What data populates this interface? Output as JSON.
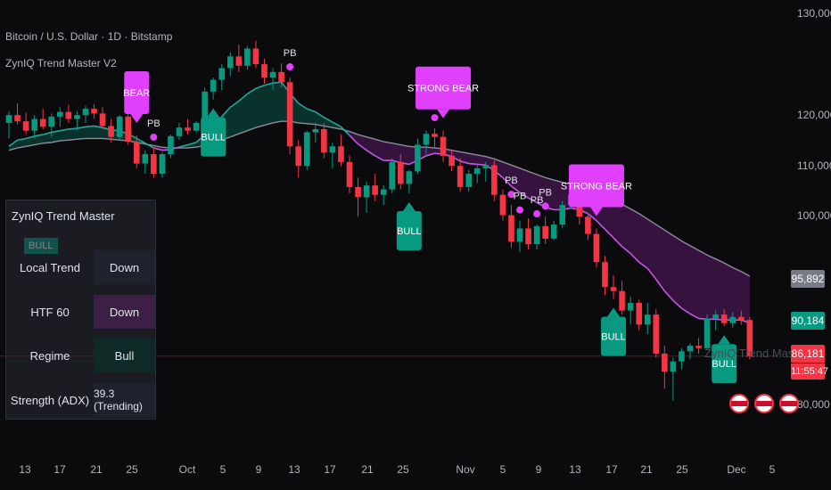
{
  "legend": {
    "symbol": "Bitcoin / U.S. Dollar · 1D · Bitstamp",
    "indicator": "ZynIQ Trend Master V2",
    "watermark": "ZynIQ Trend Master"
  },
  "panel": {
    "title": "ZynIQ Trend Master",
    "rows": [
      {
        "label": "Local Trend",
        "value": "Down",
        "bg": "#1e222d"
      },
      {
        "label": "HTF 60",
        "value": "Down",
        "bg": "#3b1f45"
      },
      {
        "label": "Regime",
        "value": "Bull",
        "bg": "#0f2a26"
      },
      {
        "label": "Strength (ADX)",
        "value": "39.3 (Trending)",
        "bg": "#1e222d"
      }
    ],
    "faded_label": "BULL"
  },
  "price_axis": {
    "ticks": [
      "130,000",
      "120,000",
      "110,000",
      "100,000",
      "80,000"
    ],
    "badges": [
      {
        "text": "95,892",
        "color": "#787b86"
      },
      {
        "text": "90,184",
        "color": "#089981"
      },
      {
        "text": "86,181",
        "color": "#f23645"
      },
      {
        "text": "11:55:47",
        "color": "#f23645"
      }
    ]
  },
  "time_axis": {
    "ticks": [
      "13",
      "17",
      "21",
      "25",
      "Oct",
      "5",
      "9",
      "13",
      "17",
      "21",
      "25",
      "Nov",
      "5",
      "9",
      "13",
      "17",
      "21",
      "25",
      "Dec",
      "5"
    ]
  },
  "colors": {
    "up": "#089981",
    "down": "#f23645",
    "bull": "#089981",
    "bear": "#e040fb",
    "pb": "#e040fb"
  },
  "chart_data": {
    "type": "candlestick",
    "title": "Bitcoin / U.S. Dollar · 1D · Bitstamp",
    "ylim": [
      78000,
      132000
    ],
    "candles": [
      [
        116000,
        117500,
        114000,
        117000
      ],
      [
        117000,
        118500,
        115800,
        116200
      ],
      [
        116200,
        117300,
        114500,
        115000
      ],
      [
        115000,
        117000,
        114000,
        116500
      ],
      [
        116500,
        117800,
        115200,
        115500
      ],
      [
        115500,
        117200,
        114200,
        116800
      ],
      [
        116800,
        118000,
        115500,
        117400
      ],
      [
        117400,
        118300,
        116000,
        116500
      ],
      [
        116500,
        117500,
        115000,
        117000
      ],
      [
        117000,
        118200,
        116000,
        117800
      ],
      [
        117800,
        118400,
        116500,
        117200
      ],
      [
        117200,
        118000,
        115200,
        115600
      ],
      [
        115600,
        116500,
        113500,
        114200
      ],
      [
        114200,
        117000,
        113800,
        116800
      ],
      [
        116800,
        117500,
        113200,
        113600
      ],
      [
        113600,
        114400,
        110200,
        110800
      ],
      [
        110800,
        112500,
        109500,
        112000
      ],
      [
        112000,
        112800,
        109000,
        109500
      ],
      [
        109500,
        112300,
        109000,
        112000
      ],
      [
        112000,
        114500,
        111500,
        114300
      ],
      [
        114300,
        116000,
        113800,
        115400
      ],
      [
        115400,
        116500,
        114500,
        115000
      ],
      [
        115000,
        116200,
        114800,
        116000
      ],
      [
        116000,
        120500,
        115800,
        120000
      ],
      [
        120000,
        121800,
        119000,
        121500
      ],
      [
        121500,
        123500,
        120200,
        123000
      ],
      [
        123000,
        125000,
        122000,
        124500
      ],
      [
        124500,
        126000,
        122500,
        123300
      ],
      [
        123300,
        125800,
        122800,
        125500
      ],
      [
        125500,
        126500,
        123000,
        123500
      ],
      [
        123500,
        124200,
        121000,
        121800
      ],
      [
        121800,
        123000,
        120200,
        122500
      ],
      [
        122500,
        123600,
        120500,
        121200
      ],
      [
        121200,
        121800,
        112000,
        113000
      ],
      [
        113000,
        113800,
        109000,
        110500
      ],
      [
        110500,
        115000,
        110000,
        114800
      ],
      [
        114800,
        116000,
        113500,
        115200
      ],
      [
        115200,
        116000,
        111500,
        112200
      ],
      [
        112200,
        113500,
        110200,
        113000
      ],
      [
        113000,
        114500,
        110500,
        111000
      ],
      [
        111000,
        111800,
        107000,
        107800
      ],
      [
        107800,
        109000,
        104000,
        106500
      ],
      [
        106500,
        108500,
        104500,
        108000
      ],
      [
        108000,
        109500,
        106000,
        106800
      ],
      [
        106800,
        108000,
        105500,
        107500
      ],
      [
        107500,
        111500,
        107000,
        111000
      ],
      [
        111000,
        112000,
        107500,
        108200
      ],
      [
        108200,
        110000,
        107000,
        109800
      ],
      [
        109800,
        114000,
        109500,
        113200
      ],
      [
        113200,
        115000,
        112000,
        114600
      ],
      [
        114600,
        115300,
        112800,
        114200
      ],
      [
        114200,
        115000,
        111000,
        111800
      ],
      [
        111800,
        112500,
        109800,
        110500
      ],
      [
        110500,
        111500,
        107200,
        107800
      ],
      [
        107800,
        110000,
        107200,
        109500
      ],
      [
        109500,
        110800,
        108300,
        110200
      ],
      [
        110200,
        111000,
        108500,
        110600
      ],
      [
        110600,
        111200,
        106000,
        106800
      ],
      [
        106800,
        107500,
        103500,
        104200
      ],
      [
        104200,
        105500,
        100000,
        100800
      ],
      [
        100800,
        103500,
        99500,
        102500
      ],
      [
        102500,
        103800,
        99800,
        100500
      ],
      [
        100500,
        103000,
        99800,
        102800
      ],
      [
        102800,
        104000,
        100500,
        101200
      ],
      [
        101200,
        103500,
        101000,
        103000
      ],
      [
        103000,
        106000,
        102500,
        105500
      ],
      [
        105500,
        107300,
        105000,
        106800
      ],
      [
        106800,
        107200,
        103000,
        104000
      ],
      [
        104000,
        104500,
        101000,
        101800
      ],
      [
        101800,
        102500,
        97500,
        98200
      ],
      [
        98200,
        99000,
        94000,
        95000
      ],
      [
        95000,
        96500,
        93500,
        94500
      ],
      [
        94500,
        95800,
        91500,
        92000
      ],
      [
        92000,
        93800,
        90200,
        93000
      ],
      [
        93000,
        93400,
        89500,
        90200
      ],
      [
        90200,
        93000,
        89000,
        91500
      ],
      [
        91500,
        92200,
        86000,
        86500
      ],
      [
        86500,
        87500,
        82000,
        84200
      ],
      [
        84200,
        86000,
        80500,
        85500
      ],
      [
        85500,
        87200,
        84500,
        86800
      ],
      [
        86800,
        87800,
        85800,
        87500
      ],
      [
        87500,
        88500,
        86500,
        87200
      ],
      [
        87200,
        91500,
        87000,
        91000
      ],
      [
        91000,
        92000,
        89500,
        91500
      ],
      [
        91500,
        92200,
        90000,
        90400
      ],
      [
        90400,
        91800,
        89800,
        91200
      ],
      [
        91200,
        92000,
        90200,
        90800
      ],
      [
        90800,
        91200,
        85800,
        86181
      ]
    ],
    "series": [
      {
        "name": "fast",
        "values": [
          113000,
          113800,
          114000,
          114300,
          114500,
          114800,
          115000,
          115200,
          115300,
          115500,
          115600,
          115400,
          115100,
          115000,
          114600,
          114000,
          113400,
          112800,
          112500,
          112600,
          112900,
          113200,
          113500,
          114500,
          115500,
          116800,
          118000,
          118800,
          119700,
          120400,
          120800,
          121100,
          121200,
          119800,
          118500,
          117800,
          117400,
          116700,
          116100,
          115500,
          114400,
          113300,
          112500,
          111800,
          111200,
          111200,
          110900,
          110700,
          111200,
          111800,
          112100,
          112000,
          111700,
          111100,
          110800,
          110700,
          110600,
          109900,
          109000,
          107900,
          107100,
          106400,
          105800,
          105200,
          104900,
          104900,
          105100,
          104900,
          104400,
          103500,
          102400,
          101300,
          100200,
          99300,
          98200,
          97400,
          96000,
          94500,
          93300,
          92300,
          91600,
          91000,
          90900,
          90900,
          90800,
          90800,
          90800,
          90400
        ]
      },
      {
        "name": "slow",
        "values": [
          112500,
          112800,
          113000,
          113200,
          113400,
          113500,
          113700,
          113800,
          113900,
          114000,
          114000,
          114000,
          113900,
          113800,
          113700,
          113500,
          113300,
          113100,
          112900,
          112800,
          112800,
          112800,
          112900,
          113100,
          113400,
          113800,
          114200,
          114600,
          115000,
          115400,
          115700,
          116000,
          116200,
          116200,
          116000,
          115900,
          115800,
          115600,
          115400,
          115200,
          114900,
          114500,
          114200,
          113900,
          113600,
          113400,
          113200,
          113000,
          112900,
          112900,
          112800,
          112700,
          112500,
          112300,
          112100,
          111900,
          111700,
          111400,
          111000,
          110600,
          110200,
          109800,
          109400,
          109000,
          108700,
          108400,
          108200,
          107900,
          107600,
          107200,
          106700,
          106200,
          105600,
          105000,
          104400,
          103700,
          103000,
          102300,
          101600,
          100900,
          100300,
          99700,
          99100,
          98600,
          98100,
          97500,
          97000,
          96400
        ]
      }
    ],
    "signals": [
      {
        "type": "BEAR",
        "index": 15
      },
      {
        "type": "STRONG BEAR",
        "index": 51
      },
      {
        "type": "STRONG BEAR",
        "index": 69
      },
      {
        "type": "BULL",
        "index": 24
      },
      {
        "type": "BULL",
        "index": 47
      },
      {
        "type": "BULL",
        "index": 71
      },
      {
        "type": "BULL",
        "index": 84
      }
    ],
    "pullbacks": [
      {
        "label": "PB",
        "index": 17
      },
      {
        "label": "PB",
        "index": 33
      },
      {
        "label": "PB",
        "index": 50
      },
      {
        "label": "PB",
        "index": 59
      },
      {
        "label": "PB",
        "index": 60
      },
      {
        "label": "PB",
        "index": 62
      },
      {
        "label": "PB",
        "index": 63
      }
    ]
  }
}
